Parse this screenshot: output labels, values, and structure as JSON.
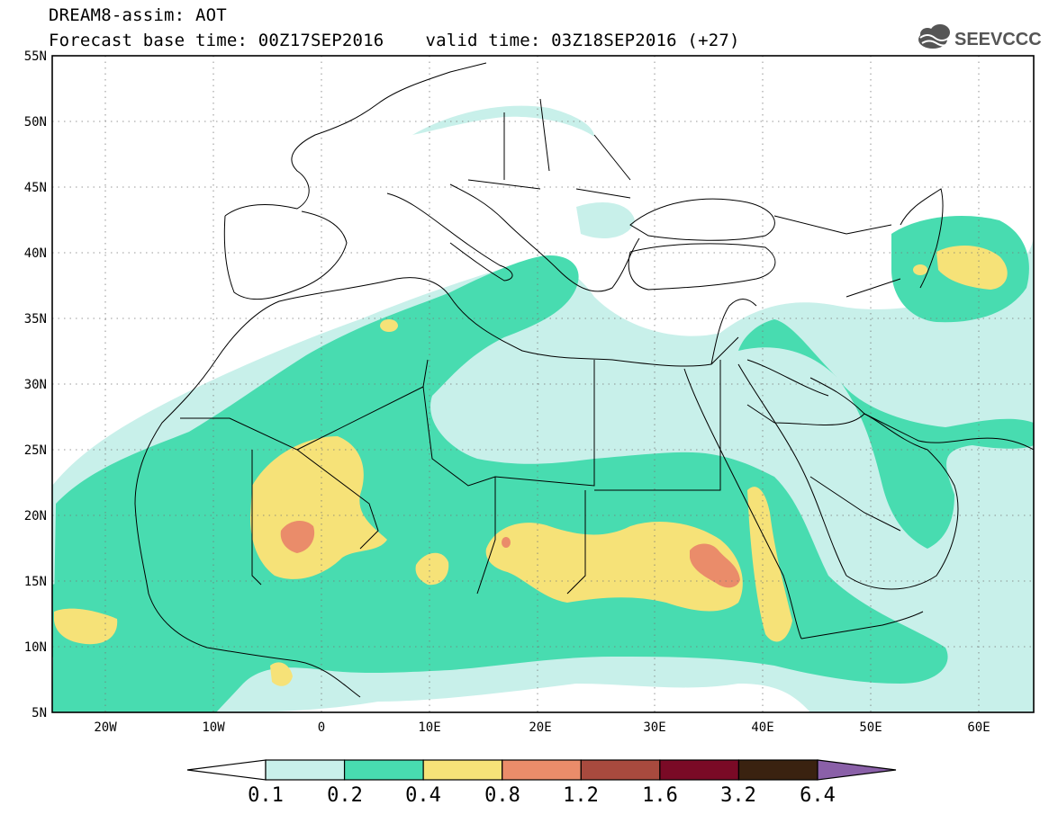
{
  "title": {
    "line1": "DREAM8-assim: AOT",
    "base_time": "Forecast base time: 00Z17SEP2016",
    "valid_time": "valid time: 03Z18SEP2016 (+27)"
  },
  "logo": {
    "text": "SEEVCCC",
    "icon": "cloud-icon"
  },
  "map": {
    "lat_labels": [
      "55N",
      "50N",
      "45N",
      "40N",
      "35N",
      "30N",
      "25N",
      "20N",
      "15N",
      "10N",
      "5N"
    ],
    "lon_labels": [
      "20W",
      "10W",
      "0",
      "10E",
      "20E",
      "30E",
      "40E",
      "50E",
      "60E"
    ],
    "lat_range": [
      5,
      55
    ],
    "lon_range": [
      -25,
      65
    ],
    "grid": "dotted",
    "variable": "Aerosol Optical Thickness"
  },
  "colorbar": {
    "ticks": [
      "0.1",
      "0.2",
      "0.4",
      "0.8",
      "1.2",
      "1.6",
      "3.2",
      "6.4"
    ],
    "colors": [
      "#c8f0ea",
      "#48dcb0",
      "#f6e278",
      "#ea8c6a",
      "#a84a3e",
      "#7a0a26",
      "#3a2210",
      "#8a60a8"
    ]
  }
}
